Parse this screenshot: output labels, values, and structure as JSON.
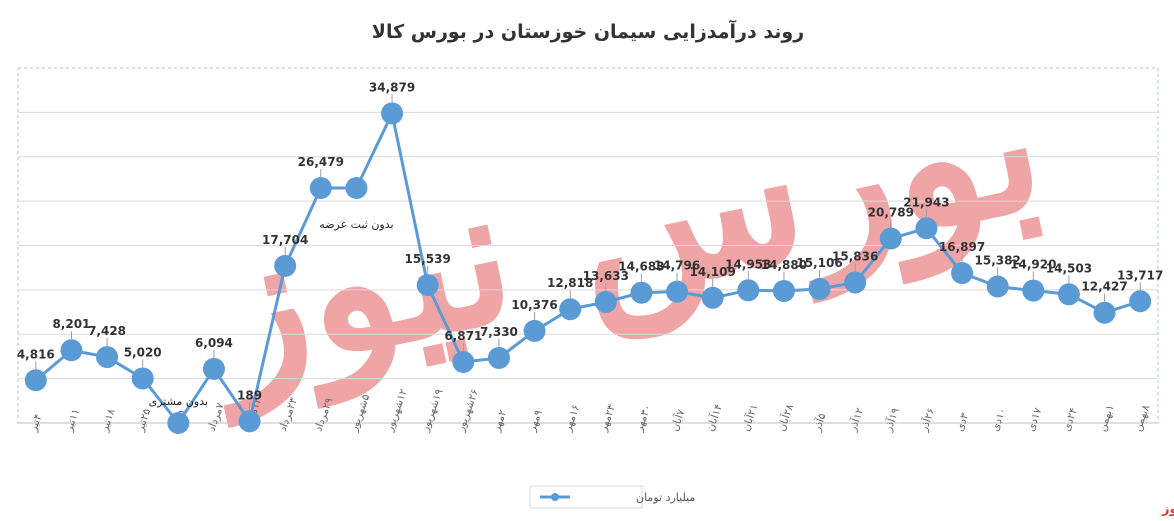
{
  "chart_data": {
    "type": "line",
    "title": "روند درآمدزایی سیمان خوزستان در بورس کالا",
    "categories": [
      "۴تیر",
      "۱۱تیر",
      "۱۸تیر",
      "۲۵تیر",
      "۳۱تیر",
      "۷مرداد",
      "۱۴مرداد",
      "۲۳مرداد",
      "۲۹مرداد",
      "۵شهریور",
      "۱۲شهریور",
      "۱۹شهریور",
      "۲۶شهریور",
      "۲مهر",
      "۹مهر",
      "۱۶مهر",
      "۲۳مهر",
      "۳۰مهر",
      "۷آبان",
      "۱۴آبان",
      "۲۱آبان",
      "۲۸آبان",
      "۵آذر",
      "۱۲آذر",
      "۱۹آذر",
      "۲۶آذر",
      "۳دی",
      "۱۰دی",
      "۱۷دی",
      "۲۴دی",
      "۱بهمن",
      "۸بهمن"
    ],
    "series": [
      {
        "name": "میلیارد تومان",
        "color": "#5b9bd5",
        "values": [
          4816,
          8201,
          7428,
          5020,
          0,
          6094,
          189,
          17704,
          26479,
          26479,
          34879,
          15539,
          6871,
          7330,
          10376,
          12818,
          13633,
          14683,
          14796,
          14109,
          14953,
          14880,
          15106,
          15836,
          20789,
          21943,
          16897,
          15382,
          14920,
          14503,
          12427,
          13717
        ],
        "labels": [
          "4,816",
          "8,201",
          "7,428",
          "5,020",
          "",
          "6,094",
          "189",
          "17,704",
          "26,479",
          "",
          "34,879",
          "15,539",
          "6,871",
          "7,330",
          "10,376",
          "12,818",
          "13,633",
          "14,683",
          "14,796",
          "14,109",
          "14,953",
          "14,880",
          "15,106",
          "15,836",
          "20,789",
          "21,943",
          "16,897",
          "15,382",
          "14,920",
          "14,503",
          "12,427",
          "13,717"
        ]
      }
    ],
    "ylim": [
      0,
      40000
    ],
    "grid": true,
    "legend_position": "bottom",
    "annotations": [
      {
        "text": "بدون مشتری",
        "index": 4
      },
      {
        "text": "بدون ثبت عرضه",
        "index": 9
      }
    ]
  },
  "brand": "بورس نیوز",
  "watermark": "بورس نیوز"
}
